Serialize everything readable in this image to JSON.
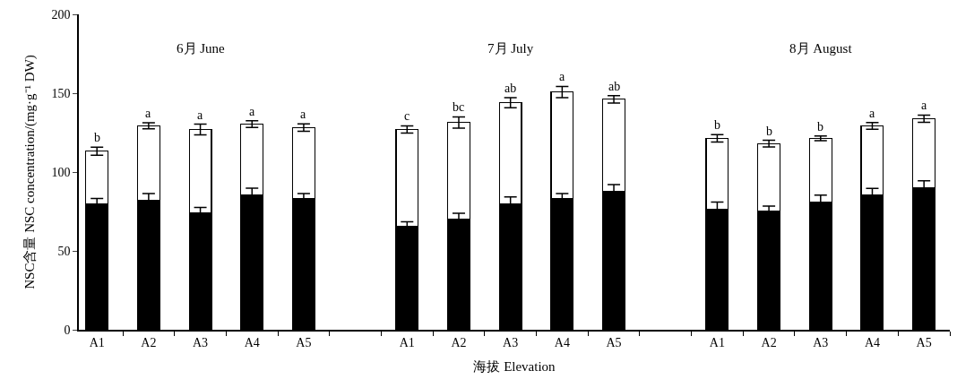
{
  "chart_data": {
    "type": "bar",
    "stacked": true,
    "categories": [
      "A1",
      "A2",
      "A3",
      "A4",
      "A5",
      null,
      "A1",
      "A2",
      "A3",
      "A4",
      "A5",
      null,
      "A1",
      "A2",
      "A3",
      "A4",
      "A5"
    ],
    "series": [
      {
        "color": "#000000",
        "values": [
          80.0,
          82.2,
          74.1,
          85.6,
          83.4,
          null,
          65.4,
          69.9,
          80.0,
          83.2,
          87.7,
          null,
          76.4,
          75.2,
          81.1,
          85.4,
          90.2
        ],
        "errors": [
          3.2,
          4.2,
          3.4,
          4.2,
          3.0,
          null,
          3.0,
          4.0,
          4.2,
          3.2,
          4.3,
          null,
          4.5,
          3.2,
          4.2,
          4.3,
          4.2
        ]
      },
      {
        "color": "#ffffff",
        "values": [
          33.2,
          47.1,
          52.9,
          44.8,
          44.8,
          null,
          61.6,
          61.5,
          64.0,
          67.5,
          58.4,
          null,
          45.0,
          42.8,
          40.3,
          43.9,
          43.6
        ],
        "errors": [
          2.5,
          1.9,
          3.4,
          2.1,
          2.3,
          null,
          2.3,
          3.6,
          3.2,
          3.6,
          2.3,
          null,
          2.3,
          2.1,
          1.5,
          2.1,
          2.3
        ],
        "value_labels": [
          "b",
          "a",
          "a",
          "a",
          "a",
          null,
          "c",
          "bc",
          "ab",
          "a",
          "ab",
          null,
          "b",
          "b",
          "b",
          "a",
          "a"
        ]
      }
    ],
    "ylim": [
      0,
      200
    ],
    "yticks": [
      0,
      50,
      100,
      150,
      200
    ],
    "ylabel": "NSC含量 NSC concentration/(mg·g⁻¹ DW)",
    "xlabel": "海拔 Elevation",
    "annotations": [
      "6月 June",
      "7月 July",
      "8月 August"
    ]
  }
}
